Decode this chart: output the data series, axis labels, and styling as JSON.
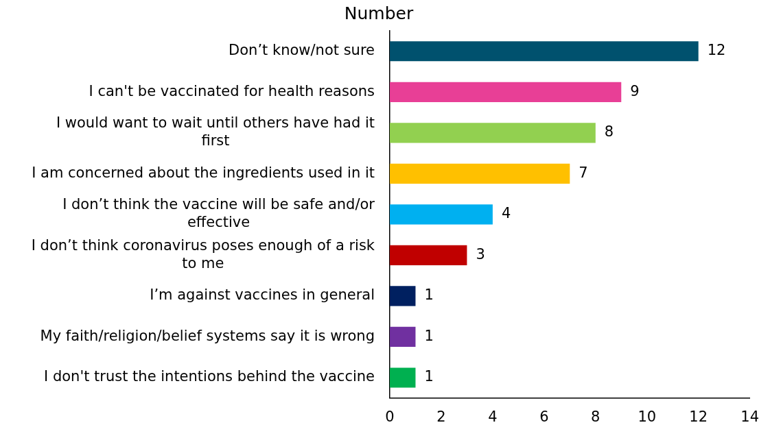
{
  "chart_data": {
    "type": "bar",
    "orientation": "horizontal",
    "title": "Number",
    "categories": [
      "Don’t know/not sure",
      "I can't be vaccinated for health reasons",
      "I would want to wait until others have had it first",
      "I am concerned about the ingredients used in it",
      "I don’t think the vaccine will be safe and/or effective",
      "I don’t think coronavirus poses enough of a risk to me",
      "I’m against vaccines in general",
      "My faith/religion/belief systems say it is wrong",
      "I don't trust the intentions behind the vaccine"
    ],
    "values": [
      12,
      9,
      8,
      7,
      4,
      3,
      1,
      1,
      1
    ],
    "colors": [
      "#00516e",
      "#e83f96",
      "#92d050",
      "#ffc000",
      "#00b0f0",
      "#c00000",
      "#002060",
      "#7030a0",
      "#00b050"
    ],
    "xlim": [
      0,
      14
    ],
    "xticks": [
      0,
      2,
      4,
      6,
      8,
      10,
      12,
      14
    ],
    "data_labels": true
  }
}
